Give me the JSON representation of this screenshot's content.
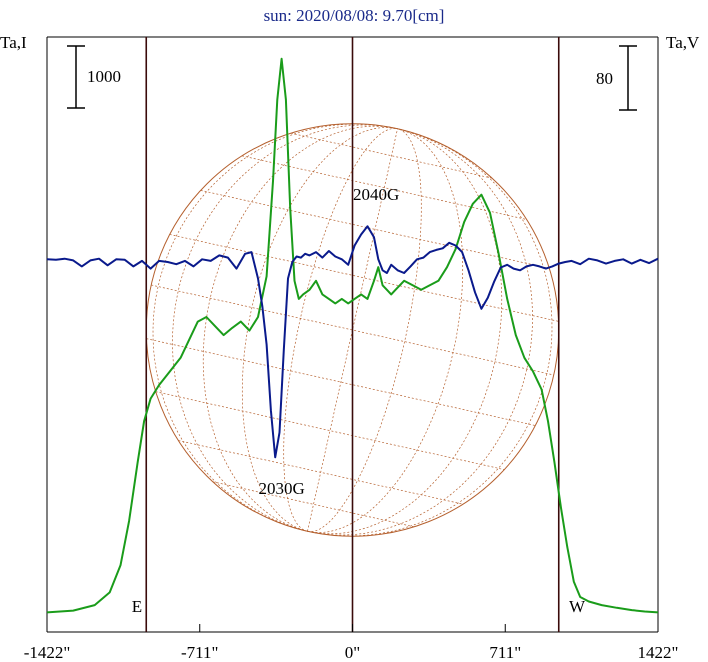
{
  "chart_data": {
    "type": "line",
    "title": "sun: 2020/08/08: 9.70[cm]",
    "y_left_label": "Ta,I",
    "y_right_label": "Ta,V",
    "scale_bar_left": "1000",
    "scale_bar_right": "80",
    "x_ticks": [
      "-1422\"",
      "-711\"",
      "0\"",
      "711\"",
      "1422\""
    ],
    "x_tick_values": [
      -1422,
      -711,
      0,
      711,
      1422
    ],
    "xlim": [
      -1422,
      1422
    ],
    "limb_labels": {
      "east": "E",
      "west": "W"
    },
    "limb_positions": [
      -960,
      960
    ],
    "annotations": [
      {
        "text": "2030G",
        "x": -330
      },
      {
        "text": "2040G",
        "x": 110
      }
    ],
    "series": [
      {
        "color": "#1a9c1a",
        "x": [
          -1422,
          -1300,
          -1200,
          -1130,
          -1080,
          -1040,
          -1000,
          -970,
          -940,
          -900,
          -850,
          -800,
          -760,
          -720,
          -680,
          -640,
          -600,
          -560,
          -520,
          -480,
          -440,
          -400,
          -370,
          -350,
          -330,
          -310,
          -290,
          -270,
          -250,
          -230,
          -200,
          -170,
          -140,
          -110,
          -80,
          -50,
          -20,
          10,
          40,
          70,
          100,
          120,
          140,
          160,
          180,
          200,
          240,
          280,
          320,
          360,
          400,
          440,
          480,
          520,
          560,
          600,
          640,
          680,
          720,
          760,
          800,
          840,
          880,
          910,
          940,
          970,
          1000,
          1030,
          1060,
          1100,
          1160,
          1230,
          1300,
          1360,
          1422
        ],
        "values": [
          40,
          60,
          120,
          260,
          560,
          1050,
          1700,
          2150,
          2400,
          2550,
          2700,
          2850,
          3050,
          3250,
          3300,
          3200,
          3100,
          3180,
          3250,
          3150,
          3300,
          3750,
          4800,
          5700,
          6150,
          5700,
          4500,
          3700,
          3500,
          3550,
          3600,
          3700,
          3550,
          3500,
          3450,
          3500,
          3450,
          3500,
          3550,
          3500,
          3700,
          3850,
          3650,
          3600,
          3550,
          3600,
          3700,
          3650,
          3600,
          3650,
          3700,
          3850,
          4050,
          4350,
          4550,
          4650,
          4450,
          4000,
          3500,
          3100,
          2850,
          2700,
          2500,
          2150,
          1700,
          1200,
          760,
          380,
          210,
          160,
          120,
          90,
          65,
          50,
          40
        ]
      },
      {
        "color": "#0a1a8c",
        "x": [
          -1422,
          -1380,
          -1340,
          -1300,
          -1260,
          -1220,
          -1180,
          -1140,
          -1100,
          -1060,
          -1020,
          -980,
          -940,
          -900,
          -860,
          -820,
          -780,
          -740,
          -700,
          -660,
          -620,
          -580,
          -540,
          -500,
          -470,
          -440,
          -420,
          -400,
          -380,
          -360,
          -340,
          -320,
          -300,
          -280,
          -260,
          -240,
          -220,
          -200,
          -170,
          -140,
          -110,
          -80,
          -50,
          -20,
          10,
          40,
          70,
          100,
          120,
          140,
          160,
          180,
          210,
          240,
          270,
          300,
          330,
          360,
          390,
          420,
          450,
          480,
          510,
          540,
          570,
          600,
          630,
          660,
          690,
          720,
          750,
          780,
          810,
          840,
          870,
          900,
          930,
          960,
          990,
          1020,
          1060,
          1100,
          1140,
          1180,
          1220,
          1260,
          1300,
          1340,
          1380,
          1422
        ],
        "values": [
          5,
          4,
          6,
          3,
          -8,
          3,
          6,
          -6,
          5,
          4,
          -8,
          2,
          -12,
          2,
          0,
          -4,
          2,
          -8,
          5,
          2,
          12,
          8,
          -12,
          15,
          18,
          -30,
          -80,
          -150,
          -270,
          -355,
          -310,
          -160,
          -30,
          0,
          10,
          8,
          15,
          12,
          18,
          8,
          20,
          10,
          5,
          -5,
          30,
          50,
          65,
          45,
          5,
          -15,
          -20,
          -5,
          -15,
          -20,
          -8,
          5,
          8,
          18,
          22,
          25,
          35,
          30,
          18,
          -15,
          -55,
          -85,
          -65,
          -35,
          -10,
          -5,
          -12,
          -15,
          -8,
          -5,
          -8,
          -12,
          -8,
          -3,
          0,
          2,
          -4,
          6,
          3,
          -3,
          2,
          5,
          -3,
          4,
          -2,
          6
        ]
      }
    ]
  }
}
